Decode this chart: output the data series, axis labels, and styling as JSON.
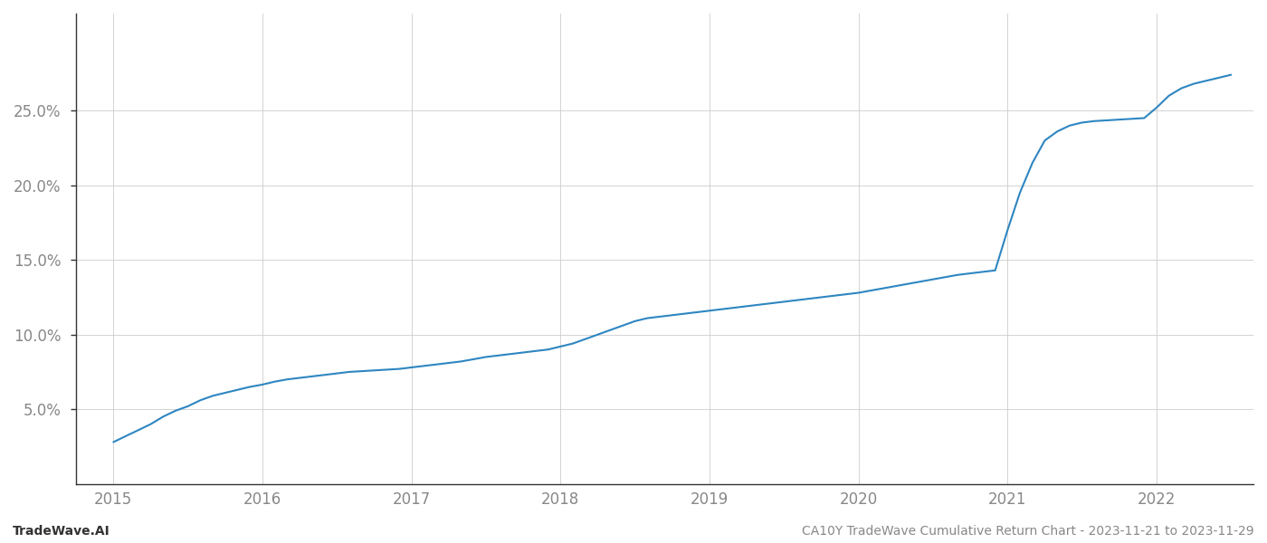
{
  "title": "CA10Y TradeWave Cumulative Return Chart - 2023-11-21 to 2023-11-29",
  "watermark_left": "TradeWave.AI",
  "line_color": "#2e86c1",
  "background_color": "#ffffff",
  "grid_color": "#cccccc",
  "x_values": [
    2015.0,
    2015.083,
    2015.167,
    2015.25,
    2015.333,
    2015.417,
    2015.5,
    2015.583,
    2015.667,
    2015.75,
    2015.833,
    2015.917,
    2016.0,
    2016.083,
    2016.167,
    2016.25,
    2016.333,
    2016.417,
    2016.5,
    2016.583,
    2016.667,
    2016.75,
    2016.833,
    2016.917,
    2017.0,
    2017.083,
    2017.167,
    2017.25,
    2017.333,
    2017.417,
    2017.5,
    2017.583,
    2017.667,
    2017.75,
    2017.833,
    2017.917,
    2018.0,
    2018.083,
    2018.167,
    2018.25,
    2018.333,
    2018.417,
    2018.5,
    2018.583,
    2018.667,
    2018.75,
    2018.833,
    2018.917,
    2019.0,
    2019.083,
    2019.167,
    2019.25,
    2019.333,
    2019.417,
    2019.5,
    2019.583,
    2019.667,
    2019.75,
    2019.833,
    2019.917,
    2020.0,
    2020.083,
    2020.167,
    2020.25,
    2020.333,
    2020.417,
    2020.5,
    2020.583,
    2020.667,
    2020.75,
    2020.833,
    2020.917,
    2021.0,
    2021.083,
    2021.167,
    2021.25,
    2021.333,
    2021.417,
    2021.5,
    2021.583,
    2021.667,
    2021.75,
    2021.833,
    2021.917,
    2022.0,
    2022.083,
    2022.167,
    2022.25,
    2022.333,
    2022.417,
    2022.5
  ],
  "y_values": [
    2.8,
    3.2,
    3.6,
    4.0,
    4.5,
    4.9,
    5.2,
    5.6,
    5.9,
    6.1,
    6.3,
    6.5,
    6.65,
    6.85,
    7.0,
    7.1,
    7.2,
    7.3,
    7.4,
    7.5,
    7.55,
    7.6,
    7.65,
    7.7,
    7.8,
    7.9,
    8.0,
    8.1,
    8.2,
    8.35,
    8.5,
    8.6,
    8.7,
    8.8,
    8.9,
    9.0,
    9.2,
    9.4,
    9.7,
    10.0,
    10.3,
    10.6,
    10.9,
    11.1,
    11.2,
    11.3,
    11.4,
    11.5,
    11.6,
    11.7,
    11.8,
    11.9,
    12.0,
    12.1,
    12.2,
    12.3,
    12.4,
    12.5,
    12.6,
    12.7,
    12.8,
    12.95,
    13.1,
    13.25,
    13.4,
    13.55,
    13.7,
    13.85,
    14.0,
    14.1,
    14.2,
    14.3,
    17.0,
    19.5,
    21.5,
    23.0,
    23.6,
    24.0,
    24.2,
    24.3,
    24.35,
    24.4,
    24.45,
    24.5,
    25.2,
    26.0,
    26.5,
    26.8,
    27.0,
    27.2,
    27.4
  ],
  "xlim": [
    2014.75,
    2022.65
  ],
  "ylim": [
    0,
    31.5
  ],
  "yticks": [
    5.0,
    10.0,
    15.0,
    20.0,
    25.0
  ],
  "ytick_labels": [
    "5.0%",
    "10.0%",
    "15.0%",
    "20.0%",
    "25.0%"
  ],
  "xticks": [
    2015,
    2016,
    2017,
    2018,
    2019,
    2020,
    2021,
    2022
  ],
  "xtick_labels": [
    "2015",
    "2016",
    "2017",
    "2018",
    "2019",
    "2020",
    "2021",
    "2022"
  ],
  "tick_color": "#888888",
  "axis_color": "#333333",
  "label_fontsize": 12,
  "tick_fontsize": 12,
  "footer_fontsize": 10,
  "line_width": 1.5
}
